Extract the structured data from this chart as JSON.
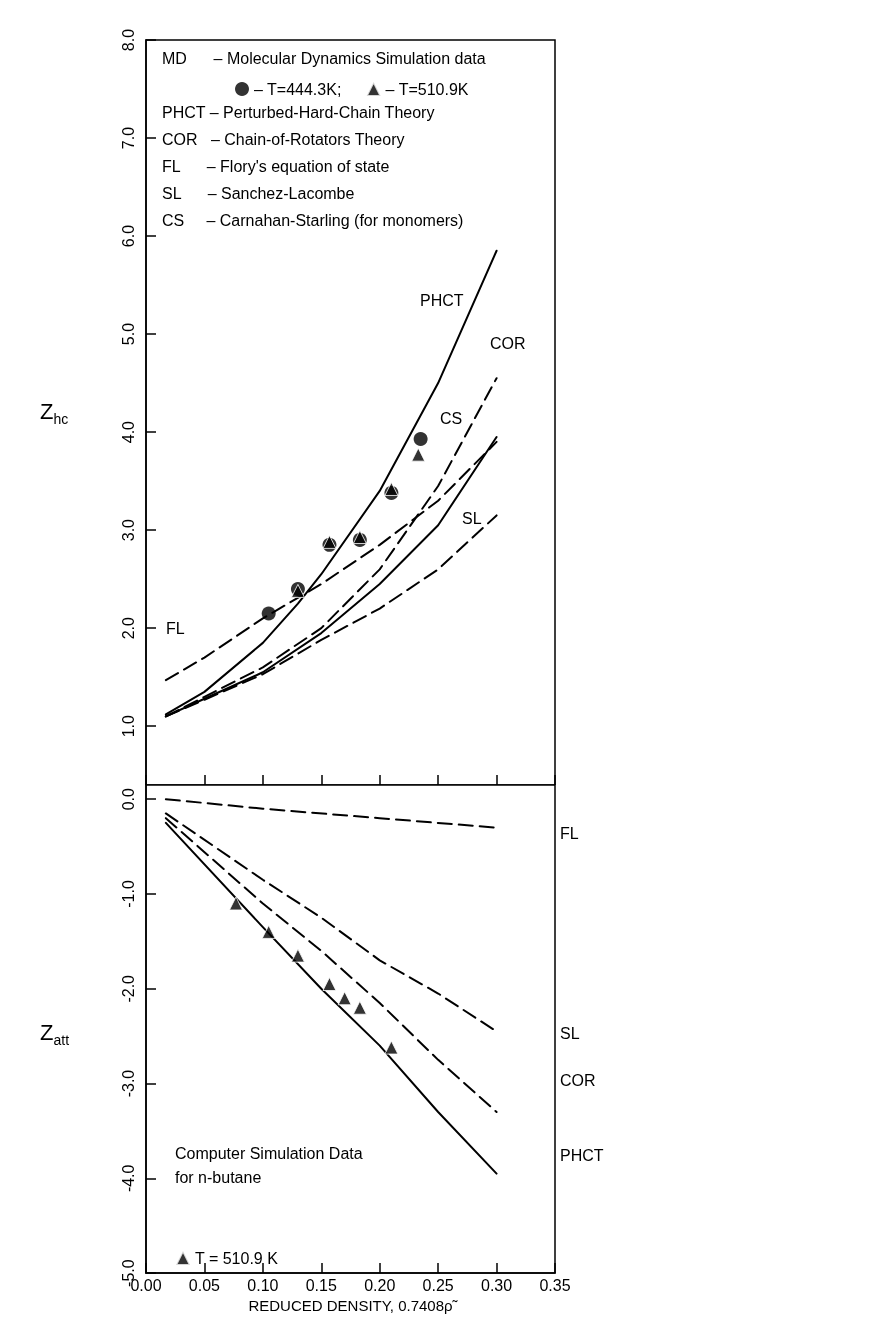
{
  "chart_data": [
    {
      "type": "line",
      "ylabel": "Z$_{hc}$",
      "xlim": [
        0,
        0.35
      ],
      "ylim": [
        0.4,
        8
      ],
      "xticks": [
        {
          "value": 0,
          "label": null
        },
        {
          "value": 0.05,
          "label": null
        },
        {
          "value": 0.1,
          "label": null
        },
        {
          "value": 0.15,
          "label": null
        },
        {
          "value": 0.2,
          "label": null
        },
        {
          "value": 0.25,
          "label": null
        },
        {
          "value": 0.3,
          "label": null
        },
        {
          "value": 0.35,
          "label": null
        }
      ],
      "yticks": [
        {
          "value": 1,
          "label": "1.0"
        },
        {
          "value": 2,
          "label": "2.0"
        },
        {
          "value": 3,
          "label": "3.0"
        },
        {
          "value": 4,
          "label": "4.0"
        },
        {
          "value": 5,
          "label": "5.0"
        },
        {
          "value": 6,
          "label": "6.0"
        },
        {
          "value": 7,
          "label": "7.0"
        },
        {
          "value": 8,
          "label": "8.0"
        }
      ],
      "tick_labels": "y",
      "grid": false,
      "legend": "top left",
      "series": [
        {
          "type": "line",
          "color": "#000000",
          "line_style": "solid",
          "marker": "none",
          "x": [
            0.017,
            0.05,
            0.1,
            0.13,
            0.15,
            0.2,
            0.25,
            0.3
          ],
          "values": [
            1.12,
            1.35,
            1.85,
            2.25,
            2.55,
            3.4,
            4.5,
            5.85
          ]
        },
        {
          "type": "line",
          "color": "#000000",
          "line_style": "dashed",
          "marker": "none",
          "x": [
            0.017,
            0.05,
            0.1,
            0.15,
            0.2,
            0.25,
            0.3
          ],
          "values": [
            1.1,
            1.3,
            1.6,
            2.0,
            2.6,
            3.45,
            4.55
          ]
        },
        {
          "type": "line",
          "color": "#000000",
          "line_style": "solid",
          "marker": "none",
          "x": [
            0.017,
            0.05,
            0.1,
            0.15,
            0.2,
            0.25,
            0.3
          ],
          "values": [
            1.1,
            1.28,
            1.55,
            1.95,
            2.45,
            3.05,
            3.95
          ]
        },
        {
          "type": "line",
          "color": "#000000",
          "line_style": "dashed",
          "marker": "none",
          "x": [
            0.017,
            0.05,
            0.1,
            0.15,
            0.2,
            0.25,
            0.3
          ],
          "values": [
            1.1,
            1.27,
            1.53,
            1.88,
            2.2,
            2.6,
            3.15
          ]
        },
        {
          "type": "line",
          "color": "#000000",
          "line_style": "dashed",
          "marker": "none",
          "x": [
            0.017,
            0.05,
            0.1,
            0.15,
            0.2,
            0.25,
            0.3
          ],
          "values": [
            1.47,
            1.7,
            2.1,
            2.45,
            2.85,
            3.3,
            3.9
          ]
        },
        {
          "type": "scatter",
          "name": "– T=444.3K;",
          "color": "#000000",
          "marker": "circle",
          "x": [
            0.105,
            0.13,
            0.157,
            0.183,
            0.21,
            0.235
          ],
          "values": [
            2.15,
            2.4,
            2.85,
            2.9,
            3.38,
            3.93
          ]
        },
        {
          "type": "scatter",
          "name": "– T=510.9K",
          "color": "#000000",
          "marker": "triangle",
          "x": [
            0.13,
            0.157,
            0.183,
            0.21,
            0.233
          ],
          "values": [
            2.38,
            2.88,
            2.93,
            3.42,
            3.77
          ]
        }
      ],
      "annotations": [
        "MD      – Molecular Dynamics Simulation data",
        "PHCT – Perturbed-Hard-Chain Theory",
        "COR   – Chain-of-Rotators Theory",
        "FL      – Flory's equation of state",
        "SL      – Sanchez-Lacombe",
        "CS     – Carnahan-Starling (for monomers)",
        "PHCT",
        "COR",
        "CS",
        "SL",
        "FL"
      ]
    },
    {
      "type": "line",
      "xlabel": "REDUCED DENSITY, 0.7408ρ̃",
      "ylabel": "Z$_{att}$",
      "xlim": [
        0,
        0.35
      ],
      "ylim": [
        -5,
        0.15
      ],
      "xticks": [
        {
          "value": 0,
          "label": "0.00"
        },
        {
          "value": 0.05,
          "label": "0.05"
        },
        {
          "value": 0.1,
          "label": "0.10"
        },
        {
          "value": 0.15,
          "label": "0.15"
        },
        {
          "value": 0.2,
          "label": "0.20"
        },
        {
          "value": 0.25,
          "label": "0.25"
        },
        {
          "value": 0.3,
          "label": "0.30"
        },
        {
          "value": 0.35,
          "label": "0.35"
        }
      ],
      "yticks": [
        {
          "value": -5,
          "label": "-5.0"
        },
        {
          "value": -4,
          "label": "-4.0"
        },
        {
          "value": -3,
          "label": "-3.0"
        },
        {
          "value": -2,
          "label": "-2.0"
        },
        {
          "value": -1,
          "label": "-1.0"
        },
        {
          "value": 0,
          "label": "0.0"
        }
      ],
      "grid": false,
      "legend": "bottom left",
      "series": [
        {
          "type": "line",
          "color": "#000000",
          "line_style": "dashed",
          "marker": "none",
          "x": [
            0.017,
            0.1,
            0.2,
            0.3
          ],
          "values": [
            0.0,
            -0.1,
            -0.2,
            -0.3
          ]
        },
        {
          "type": "line",
          "color": "#000000",
          "line_style": "dashed",
          "marker": "none",
          "x": [
            0.017,
            0.1,
            0.15,
            0.2,
            0.25,
            0.3
          ],
          "values": [
            -0.15,
            -0.85,
            -1.25,
            -1.7,
            -2.05,
            -2.45
          ]
        },
        {
          "type": "line",
          "color": "#000000",
          "line_style": "dashed",
          "marker": "none",
          "x": [
            0.017,
            0.1,
            0.15,
            0.2,
            0.25,
            0.3
          ],
          "values": [
            -0.2,
            -1.1,
            -1.6,
            -2.15,
            -2.75,
            -3.3
          ]
        },
        {
          "type": "line",
          "color": "#000000",
          "line_style": "solid",
          "marker": "none",
          "x": [
            0.017,
            0.1,
            0.15,
            0.2,
            0.25,
            0.3
          ],
          "values": [
            -0.25,
            -1.35,
            -2.0,
            -2.6,
            -3.3,
            -3.95
          ]
        },
        {
          "type": "scatter",
          "name": "T = 510.9 K",
          "color": "#000000",
          "marker": "triangle",
          "x": [
            0.077,
            0.105,
            0.13,
            0.157,
            0.17,
            0.183,
            0.21
          ],
          "values": [
            -1.1,
            -1.4,
            -1.65,
            -1.95,
            -2.1,
            -2.2,
            -2.62
          ]
        }
      ],
      "annotations": [
        "Computer Simulation Data",
        "for n-butane",
        "FL",
        "SL",
        "COR",
        "PHCT"
      ]
    }
  ]
}
